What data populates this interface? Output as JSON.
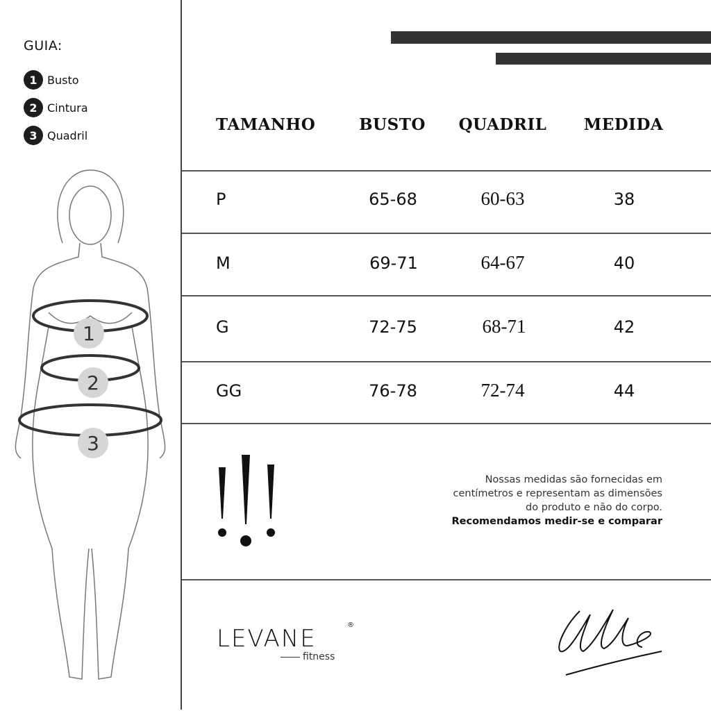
{
  "guide": {
    "title": "GUIA:",
    "items": [
      {
        "number": "1",
        "label": "Busto"
      },
      {
        "number": "2",
        "label": "Cintura"
      },
      {
        "number": "3",
        "label": "Quadril"
      }
    ]
  },
  "table": {
    "headers": [
      "TAMANHO",
      "BUSTO",
      "QUADRIL",
      "MEDIDA"
    ],
    "rows": [
      [
        "P",
        "65-68",
        "60-63",
        "38"
      ],
      [
        "M",
        "69-71",
        "64-67",
        "40"
      ],
      [
        "G",
        "72-75",
        "68-71",
        "42"
      ],
      [
        "GG",
        "76-78",
        "72-74",
        "44"
      ]
    ]
  },
  "note": {
    "lines": [
      "Nossas medidas são fornecidas em",
      "centímetros e representam as dimensões",
      "do produto e não do corpo."
    ],
    "emphasis": "Recomendamos medir-se e comparar"
  },
  "brand": {
    "name": "LEVANE",
    "tagline": "fitness",
    "registered": "®"
  },
  "colors": {
    "dark": "#333333",
    "marker": "#d6d6d6"
  }
}
